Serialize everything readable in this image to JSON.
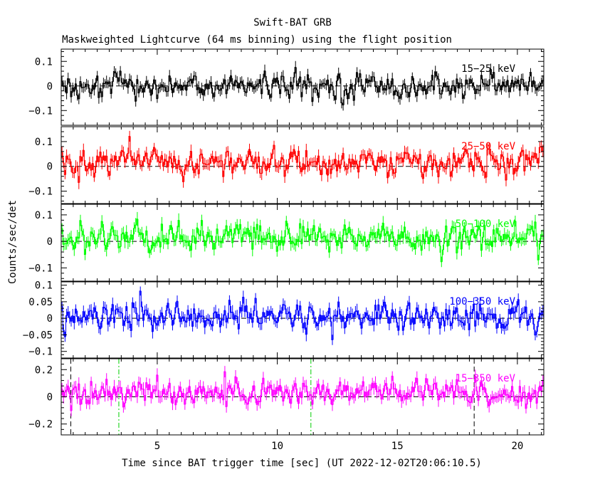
{
  "chart_data": {
    "type": "line",
    "title": "Swift-BAT GRB",
    "subtitle": "Maskweighted Lightcurve (64 ms binning) using the flight position",
    "xlabel": "Time since BAT trigger time [sec] (UT 2022-12-02T20:06:10.5)",
    "ylabel": "Counts/sec/det",
    "xlim": [
      1.0,
      21.1
    ],
    "x_ticks": [
      5,
      10,
      15,
      20
    ],
    "x_tick_labels": [
      "5",
      "10",
      "15",
      "20"
    ],
    "bin_width_sec": 0.064,
    "vertical_markers": [
      {
        "x": 1.4,
        "style": "dashed",
        "color": "#000000",
        "note": "black dashed"
      },
      {
        "x": 3.4,
        "style": "dashdot",
        "color": "#00cc00",
        "note": "green dash-dot"
      },
      {
        "x": 11.4,
        "style": "dashdot",
        "color": "#00cc00",
        "note": "green dash-dot"
      },
      {
        "x": 18.2,
        "style": "dashed",
        "color": "#000000",
        "note": "black dashed"
      }
    ],
    "series": [
      {
        "name": "15-25 keV",
        "label": "15−25 keV",
        "color": "#000000",
        "ylim": [
          -0.16,
          0.15
        ],
        "y_ticks": [
          -0.1,
          0,
          0.1
        ],
        "y_tick_labels": [
          "−0.1",
          "0",
          "0.1"
        ],
        "noise_std": 0.03,
        "mean": 0.0
      },
      {
        "name": "25-50 keV",
        "label": "25−50 keV",
        "color": "#ff0000",
        "ylim": [
          -0.15,
          0.16
        ],
        "y_ticks": [
          -0.1,
          0,
          0.1
        ],
        "y_tick_labels": [
          "−0.1",
          "0",
          "0.1"
        ],
        "noise_std": 0.032,
        "mean": 0.015
      },
      {
        "name": "50-100 keV",
        "label": "50−100 keV",
        "color": "#00ff00",
        "ylim": [
          -0.15,
          0.14
        ],
        "y_ticks": [
          -0.1,
          0,
          0.1
        ],
        "y_tick_labels": [
          "−0.1",
          "0",
          "0.1"
        ],
        "noise_std": 0.032,
        "mean": 0.015
      },
      {
        "name": "100-350 keV",
        "label": "100−350 keV",
        "color": "#0000ff",
        "ylim": [
          -0.12,
          0.11
        ],
        "y_ticks": [
          -0.1,
          -0.05,
          0,
          0.05,
          0.1
        ],
        "y_tick_labels": [
          "−0.1",
          "−0.05",
          "0",
          "0.05",
          "0.1"
        ],
        "noise_std": 0.025,
        "mean": 0.005
      },
      {
        "name": "15-350 keV",
        "label": "15−350 keV",
        "color": "#ff00ff",
        "ylim": [
          -0.28,
          0.28
        ],
        "y_ticks": [
          -0.2,
          0,
          0.2
        ],
        "y_tick_labels": [
          "−0.2",
          "0",
          "0.2"
        ],
        "noise_std": 0.06,
        "mean": 0.03
      }
    ]
  }
}
